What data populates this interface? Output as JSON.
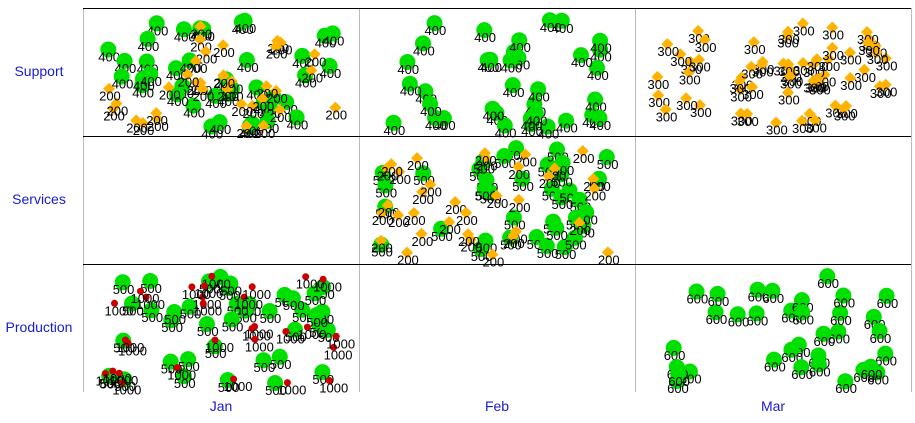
{
  "chart_data": {
    "type": "scatter",
    "title": "",
    "xlabel": "",
    "ylabel": "",
    "grid": true,
    "rows": [
      "Support",
      "Services",
      "Production"
    ],
    "columns": [
      "Jan",
      "Feb",
      "Mar"
    ],
    "colors": {
      "green": "#00e000",
      "orange": "#ffb300",
      "red": "#cc0000",
      "axis_text": "#1a1ad4",
      "rule": "#000000",
      "cell_border": "#bbbbbb"
    },
    "panels": [
      {
        "row": "Support",
        "column": "Jan",
        "series": [
          {
            "name": "400",
            "color": "green",
            "marker": "circle",
            "count": 40
          },
          {
            "name": "200",
            "color": "orange",
            "marker": "diamond",
            "count": 35
          }
        ]
      },
      {
        "row": "Support",
        "column": "Feb",
        "series": [
          {
            "name": "400",
            "color": "green",
            "marker": "circle",
            "count": 36
          }
        ]
      },
      {
        "row": "Support",
        "column": "Mar",
        "series": [
          {
            "name": "300",
            "color": "orange",
            "marker": "diamond",
            "count": 60
          }
        ]
      },
      {
        "row": "Services",
        "column": "Feb",
        "series": [
          {
            "name": "500",
            "color": "green",
            "marker": "circle",
            "count": 38
          },
          {
            "name": "200",
            "color": "orange",
            "marker": "diamond",
            "count": 34
          }
        ]
      },
      {
        "row": "Production",
        "column": "Jan",
        "series": [
          {
            "name": "500",
            "color": "green",
            "marker": "circle",
            "count": 40
          },
          {
            "name": "1000",
            "color": "red",
            "marker": "dot",
            "count": 30
          }
        ]
      },
      {
        "row": "Production",
        "column": "Mar",
        "series": [
          {
            "name": "600",
            "color": "green",
            "marker": "circle",
            "count": 34
          }
        ]
      }
    ]
  }
}
